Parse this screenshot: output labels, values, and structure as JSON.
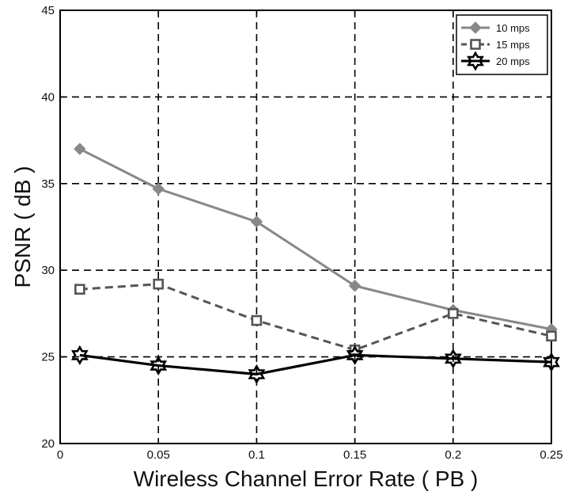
{
  "chart_data": {
    "type": "line",
    "xlabel": "Wireless Channel Error Rate ( PB )",
    "ylabel": "PSNR ( dB )",
    "xlim": [
      0,
      0.25
    ],
    "ylim": [
      20,
      45
    ],
    "x_ticks": [
      "0",
      "0.05",
      "0.1",
      "0.15",
      "0.2",
      "0.25"
    ],
    "y_ticks": [
      "20",
      "25",
      "30",
      "35",
      "40",
      "45"
    ],
    "grid": true,
    "grid_style": "dashed",
    "legend_position": "top-right",
    "x": [
      0.01,
      0.05,
      0.1,
      0.15,
      0.2,
      0.25
    ],
    "series": [
      {
        "name": "10 mps",
        "values": [
          37.0,
          34.7,
          32.8,
          29.1,
          27.7,
          26.6
        ],
        "color": "#888888",
        "line_style": "solid",
        "marker": "diamond"
      },
      {
        "name": "15 mps",
        "values": [
          28.9,
          29.2,
          27.1,
          25.4,
          27.5,
          26.2
        ],
        "color": "#555555",
        "line_style": "dashed",
        "marker": "square"
      },
      {
        "name": "20 mps",
        "values": [
          25.1,
          24.5,
          24.0,
          25.1,
          24.9,
          24.7
        ],
        "color": "#000000",
        "line_style": "solid",
        "marker": "hexagram"
      }
    ]
  }
}
